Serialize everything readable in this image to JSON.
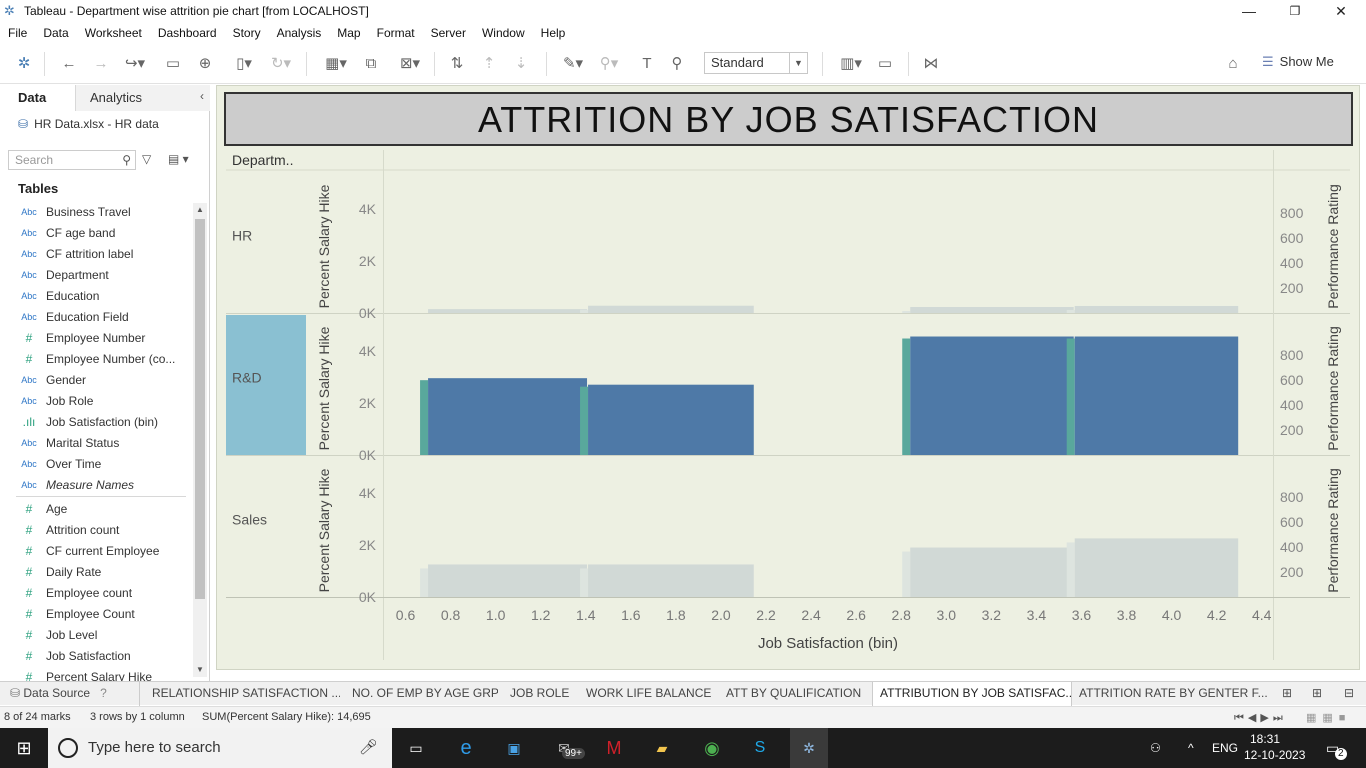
{
  "window": {
    "title": "Tableau - Department wise attrition  pie chart [from LOCALHOST]",
    "min": "—",
    "max": "❐",
    "close": "✕"
  },
  "menu": [
    "File",
    "Data",
    "Worksheet",
    "Dashboard",
    "Story",
    "Analysis",
    "Map",
    "Format",
    "Server",
    "Window",
    "Help"
  ],
  "toolbar": {
    "fit": "Standard",
    "show_me": "Show Me"
  },
  "left_pane": {
    "tab_data": "Data",
    "tab_analytics": "Analytics",
    "datasource": "HR Data.xlsx - HR data",
    "search_placeholder": "Search",
    "tables_heading": "Tables",
    "fields_dims": [
      {
        "type": "Abc",
        "name": "Business Travel"
      },
      {
        "type": "Abc",
        "name": "CF age band"
      },
      {
        "type": "Abc",
        "name": "CF attrition label"
      },
      {
        "type": "Abc",
        "name": "Department"
      },
      {
        "type": "Abc",
        "name": "Education"
      },
      {
        "type": "Abc",
        "name": "Education Field"
      },
      {
        "type": "#",
        "name": "Employee Number"
      },
      {
        "type": "#",
        "name": "Employee Number (co..."
      },
      {
        "type": "Abc",
        "name": "Gender"
      },
      {
        "type": "Abc",
        "name": "Job Role"
      },
      {
        "type": ".ılı",
        "name": "Job Satisfaction (bin)"
      },
      {
        "type": "Abc",
        "name": "Marital Status"
      },
      {
        "type": "Abc",
        "name": "Over Time"
      },
      {
        "type": "Abc",
        "name": "Measure Names",
        "italic": true
      }
    ],
    "fields_measures": [
      {
        "type": "#",
        "name": "Age"
      },
      {
        "type": "#",
        "name": "Attrition count"
      },
      {
        "type": "#",
        "name": "CF current Employee"
      },
      {
        "type": "#",
        "name": "Daily Rate"
      },
      {
        "type": "#",
        "name": "Employee count"
      },
      {
        "type": "#",
        "name": "Employee Count"
      },
      {
        "type": "#",
        "name": "Job Level"
      },
      {
        "type": "#",
        "name": "Job Satisfaction"
      },
      {
        "type": "#",
        "name": "Percent Salary Hike"
      }
    ]
  },
  "viz": {
    "title": "ATTRITION BY JOB SATISFACTION",
    "row_header": "Departm..",
    "left_axis_title": "Percent Salary Hike",
    "right_axis_title": "Performance Rating",
    "x_axis_title": "Job Satisfaction (bin)"
  },
  "chart_data": {
    "type": "bar",
    "title": "ATTRITION BY JOB SATISFACTION",
    "xlabel": "Job Satisfaction (bin)",
    "ylabel": "Percent Salary Hike",
    "y2label": "Performance Rating",
    "xlim": [
      0.5,
      4.45
    ],
    "x_ticks": [
      "0.6",
      "0.8",
      "1.0",
      "1.2",
      "1.4",
      "1.6",
      "1.8",
      "2.0",
      "2.2",
      "2.4",
      "2.6",
      "2.8",
      "3.0",
      "3.2",
      "3.4",
      "3.6",
      "3.8",
      "4.0",
      "4.2",
      "4.4"
    ],
    "ylim": [
      0,
      4800
    ],
    "y_ticks": [
      "0K",
      "2K",
      "4K"
    ],
    "y2lim": [
      0,
      1000
    ],
    "y2_ticks": [
      "200",
      "400",
      "600",
      "800"
    ],
    "highlighted_department": "R&D",
    "colors": {
      "highlight": "#4e79a7",
      "highlight_edge": "#59a89c",
      "dim": "#d1d9d6",
      "dim_edge": "#dde4df",
      "row_highlight": "#8ac0d2"
    },
    "panels": [
      {
        "department": "HR",
        "bars": [
          {
            "x0": 0.7,
            "x1": 1.41,
            "value": 150
          },
          {
            "x0": 1.41,
            "x1": 2.15,
            "value": 280
          },
          {
            "x0": 2.84,
            "x1": 3.57,
            "value": 230
          },
          {
            "x0": 3.57,
            "x1": 4.3,
            "value": 270
          }
        ]
      },
      {
        "department": "R&D",
        "bars": [
          {
            "x0": 0.7,
            "x1": 1.41,
            "value": 2950
          },
          {
            "x0": 1.41,
            "x1": 2.15,
            "value": 2700
          },
          {
            "x0": 2.84,
            "x1": 3.57,
            "value": 4550
          },
          {
            "x0": 3.57,
            "x1": 4.3,
            "value": 4550
          }
        ]
      },
      {
        "department": "Sales",
        "bars": [
          {
            "x0": 0.7,
            "x1": 1.41,
            "value": 1250
          },
          {
            "x0": 1.41,
            "x1": 2.15,
            "value": 1250
          },
          {
            "x0": 2.84,
            "x1": 3.57,
            "value": 1900
          },
          {
            "x0": 3.57,
            "x1": 4.3,
            "value": 2250
          }
        ]
      }
    ]
  },
  "sheets": {
    "data_source": "Data Source",
    "tabs": [
      "RELATIONSHIP SATISFACTION ...",
      "NO. OF EMP BY AGE GRP",
      "JOB ROLE",
      "WORK LIFE BALANCE",
      "ATT BY QUALIFICATION",
      "ATTRIBUTION BY JOB SATISFAC...",
      "ATTRITION  RATE BY GENTER F..."
    ],
    "active_index": 5
  },
  "status": {
    "marks": "8 of 24 marks",
    "dims": "3 rows by 1 column",
    "sum": "SUM(Percent Salary Hike): 14,695"
  },
  "taskbar": {
    "search_placeholder": "Type here to search",
    "notif_badge": "99+",
    "lang": "ENG",
    "time": "18:31",
    "date": "12-10-2023",
    "notif_count": "2"
  }
}
